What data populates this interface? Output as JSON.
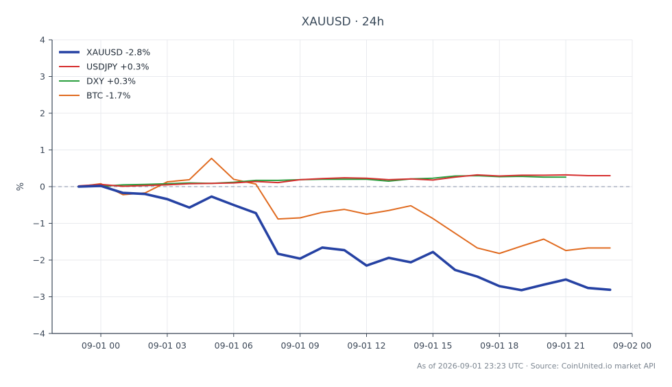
{
  "chart_data": {
    "type": "line",
    "title": "XAUUSD · 24h",
    "xlabel": "",
    "ylabel": "%",
    "ylim": [
      -4,
      4
    ],
    "y_ticks": [
      4,
      3,
      2,
      1,
      0,
      -1,
      -2,
      -3,
      -4
    ],
    "y_tick_labels": [
      "4",
      "3",
      "2",
      "1",
      "0",
      "−1",
      "−2",
      "−3",
      "−4"
    ],
    "x_ticks": [
      0,
      3,
      6,
      9,
      12,
      15,
      18,
      21,
      24
    ],
    "x_tick_labels": [
      "09-01 00",
      "09-01 03",
      "09-01 06",
      "09-01 09",
      "09-01 12",
      "09-01 15",
      "09-01 18",
      "09-01 21",
      "09-02 00"
    ],
    "x_unit": "hours since 2026-09-01 00:00 UTC",
    "xlim": [
      -2.2,
      24
    ],
    "grid": true,
    "legend_position": "top-left",
    "reference_line": 0,
    "series": [
      {
        "name": "XAUUSD -2.8%",
        "color": "#2642a3",
        "x": [
          -1,
          0,
          1,
          2,
          3,
          4,
          5,
          6,
          7,
          8,
          9,
          10,
          11,
          12,
          13,
          14,
          15,
          16,
          17,
          18,
          19,
          20,
          21,
          22,
          23
        ],
        "values": [
          0.0,
          0.02,
          -0.17,
          -0.2,
          -0.34,
          -0.57,
          -0.27,
          -0.5,
          -0.72,
          -1.83,
          -1.96,
          -1.66,
          -1.73,
          -2.15,
          -1.94,
          -2.06,
          -1.78,
          -2.27,
          -2.45,
          -2.71,
          -2.82,
          -2.67,
          -2.53,
          -2.76,
          -2.81
        ]
      },
      {
        "name": "USDJPY +0.3%",
        "color": "#d62f2f",
        "x": [
          -1,
          0,
          1,
          2,
          3,
          4,
          5,
          6,
          7,
          8,
          9,
          10,
          11,
          12,
          13,
          14,
          15,
          16,
          17,
          18,
          19,
          20,
          21,
          22,
          23
        ],
        "values": [
          0.02,
          0.06,
          0.01,
          0.03,
          0.05,
          0.08,
          0.09,
          0.1,
          0.14,
          0.11,
          0.19,
          0.22,
          0.24,
          0.23,
          0.19,
          0.21,
          0.18,
          0.26,
          0.32,
          0.29,
          0.31,
          0.31,
          0.32,
          0.3,
          0.3
        ]
      },
      {
        "name": "DXY +0.3%",
        "color": "#2a9e3e",
        "x": [
          -1,
          0,
          1,
          2,
          3,
          4,
          5,
          6,
          7,
          8,
          9,
          10,
          11,
          12,
          13,
          14,
          15,
          16,
          17,
          18,
          19,
          20,
          21
        ],
        "values": [
          0.0,
          0.01,
          0.05,
          0.06,
          0.08,
          0.1,
          0.09,
          0.12,
          0.17,
          0.17,
          0.19,
          0.2,
          0.2,
          0.2,
          0.15,
          0.21,
          0.23,
          0.29,
          0.3,
          0.27,
          0.28,
          0.26,
          0.26
        ]
      },
      {
        "name": "BTC -1.7%",
        "color": "#e06a1f",
        "x": [
          -1,
          0,
          1,
          2,
          3,
          4,
          5,
          6,
          7,
          8,
          9,
          10,
          11,
          12,
          13,
          14,
          15,
          16,
          17,
          18,
          19,
          20,
          21,
          22,
          23
        ],
        "values": [
          0.0,
          0.08,
          -0.22,
          -0.17,
          0.13,
          0.19,
          0.77,
          0.2,
          0.07,
          -0.88,
          -0.85,
          -0.7,
          -0.62,
          -0.75,
          -0.65,
          -0.52,
          -0.87,
          -1.27,
          -1.67,
          -1.82,
          -1.62,
          -1.43,
          -1.74,
          -1.67,
          -1.67
        ]
      }
    ]
  },
  "footer": "As of 2026-09-01 23:23 UTC · Source: CoinUnited.io market API"
}
